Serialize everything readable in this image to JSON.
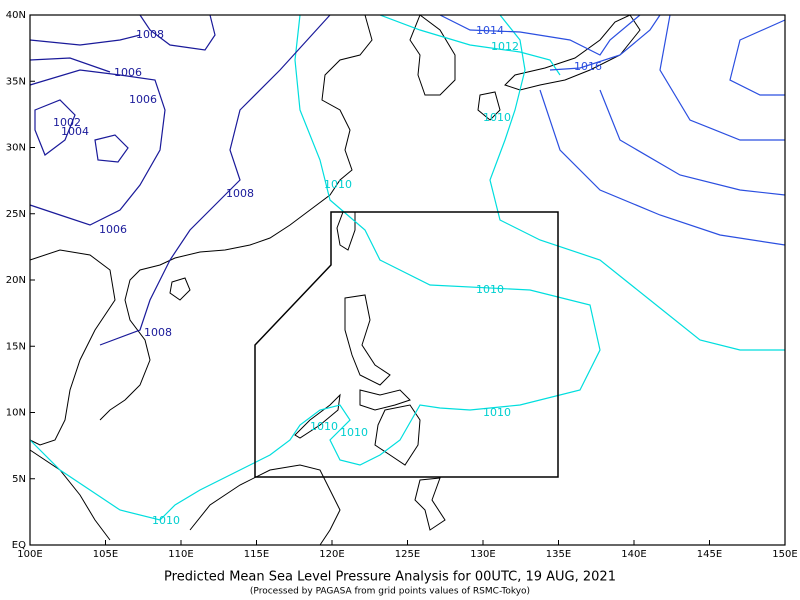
{
  "title": "Predicted Mean Sea Level Pressure Analysis for 00UTC, 19 AUG, 2021",
  "subtitle": "(Processed by PAGASA from grid points values of RSMC-Tokyo)",
  "lon_labels": [
    "100E",
    "105E",
    "110E",
    "115E",
    "120E",
    "125E",
    "130E",
    "135E",
    "140E",
    "145E",
    "150E"
  ],
  "lat_labels": [
    "EQ",
    "5N",
    "10N",
    "15N",
    "20N",
    "25N",
    "30N",
    "35N",
    "40N"
  ],
  "isobar_labels": [
    1008,
    1006,
    1006,
    1002,
    1004,
    1008,
    1006,
    1008,
    1014,
    1012,
    1016,
    1010,
    1010,
    1010,
    1010,
    1010,
    1010,
    1010
  ]
}
